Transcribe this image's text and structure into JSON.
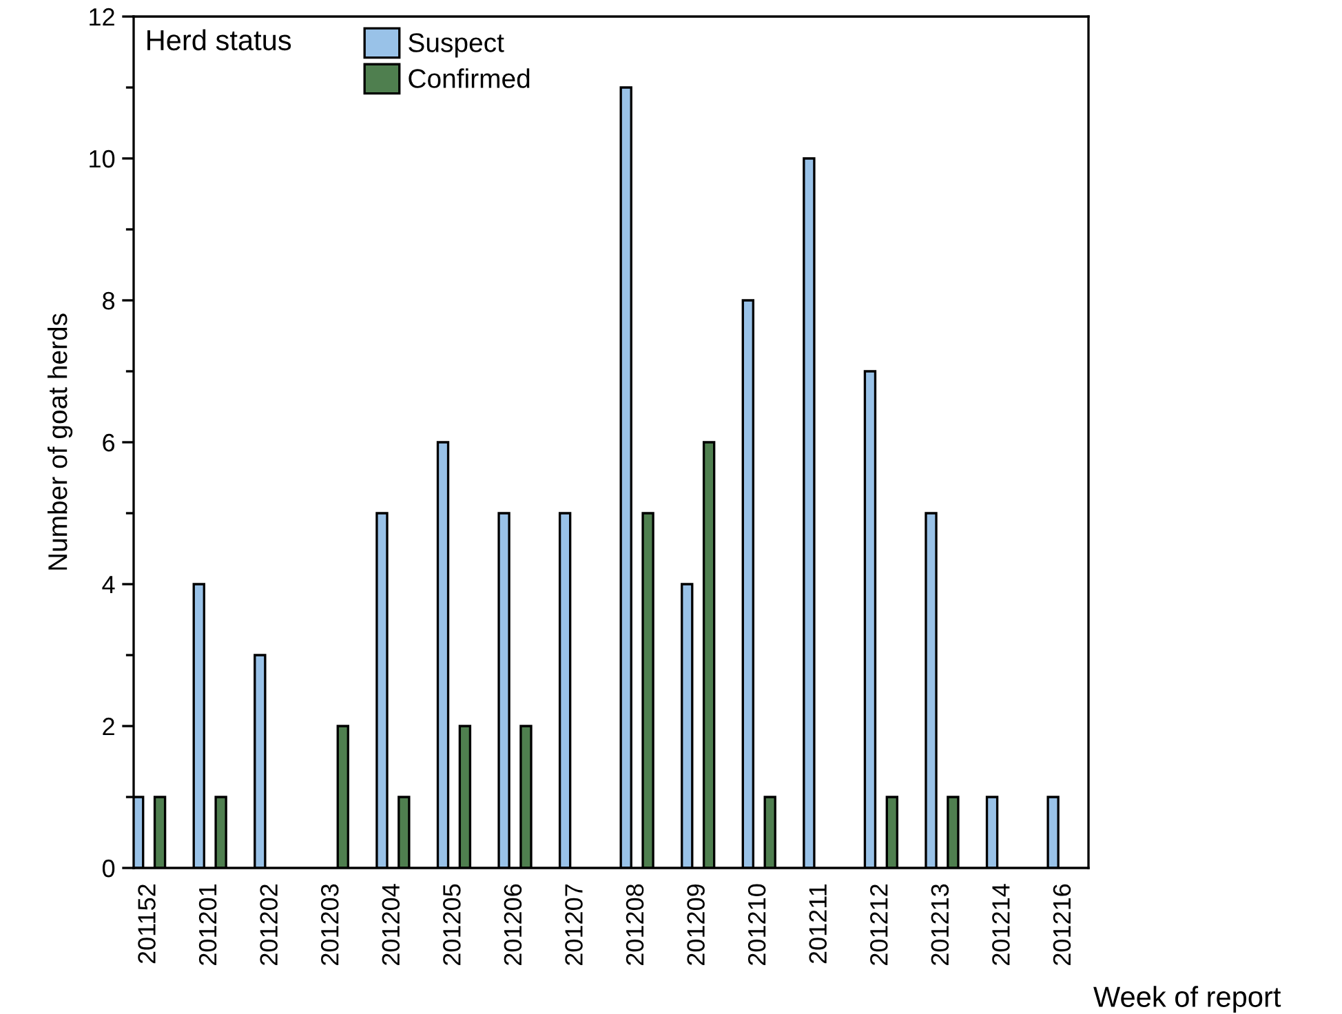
{
  "chart_data": {
    "type": "bar",
    "xlabel": "Week of report",
    "ylabel": "Number of goat herds",
    "legend_title": "Herd status",
    "categories": [
      "201152",
      "201201",
      "201202",
      "201203",
      "201204",
      "201205",
      "201206",
      "201207",
      "201208",
      "201209",
      "201210",
      "201211",
      "201212",
      "201213",
      "201214",
      "201216"
    ],
    "series": [
      {
        "name": "Suspect",
        "color": "#99c2e8",
        "values": [
          1,
          4,
          3,
          null,
          5,
          6,
          5,
          5,
          11,
          4,
          8,
          10,
          7,
          5,
          1,
          1
        ]
      },
      {
        "name": "Confirmed",
        "color": "#4f7f4f",
        "values": [
          1,
          1,
          null,
          2,
          1,
          2,
          2,
          null,
          5,
          6,
          1,
          null,
          1,
          1,
          null,
          null
        ]
      }
    ],
    "ylim": [
      0,
      12
    ],
    "yticks": [
      0,
      {
        "value": 1,
        "label": null
      },
      2,
      {
        "value": 3,
        "label": null
      },
      4,
      {
        "value": 5,
        "label": null
      },
      6,
      {
        "value": 7,
        "label": null
      },
      8,
      {
        "value": 9,
        "label": null
      },
      10,
      {
        "value": 11,
        "label": null
      },
      12
    ],
    "grid": false,
    "legend": "top left"
  }
}
